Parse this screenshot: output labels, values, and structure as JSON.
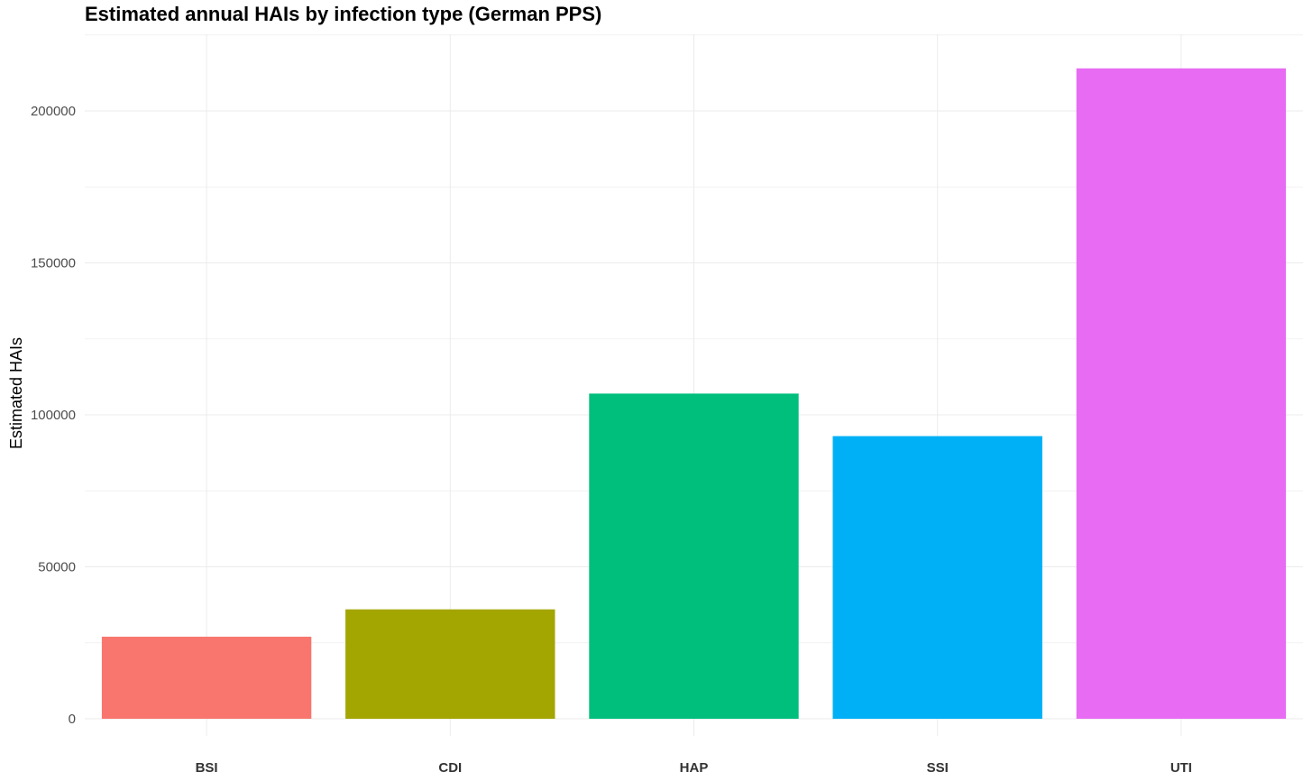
{
  "chart_data": {
    "type": "bar",
    "title": "Estimated annual HAIs by infection type (German PPS)",
    "xlabel": "",
    "ylabel": "Estimated HAIs",
    "categories": [
      "BSI",
      "CDI",
      "HAP",
      "SSI",
      "UTI"
    ],
    "values": [
      27000,
      36000,
      107000,
      93000,
      214000
    ],
    "colors": [
      "#F8766D",
      "#A3A500",
      "#00BF7D",
      "#00B0F6",
      "#E76BF3"
    ],
    "ylim": [
      0,
      225000
    ],
    "yticks": [
      0,
      50000,
      100000,
      150000,
      200000
    ],
    "ytick_labels": [
      "0",
      "50000",
      "100000",
      "150000",
      "200000"
    ],
    "grid": true,
    "legend": "none"
  }
}
